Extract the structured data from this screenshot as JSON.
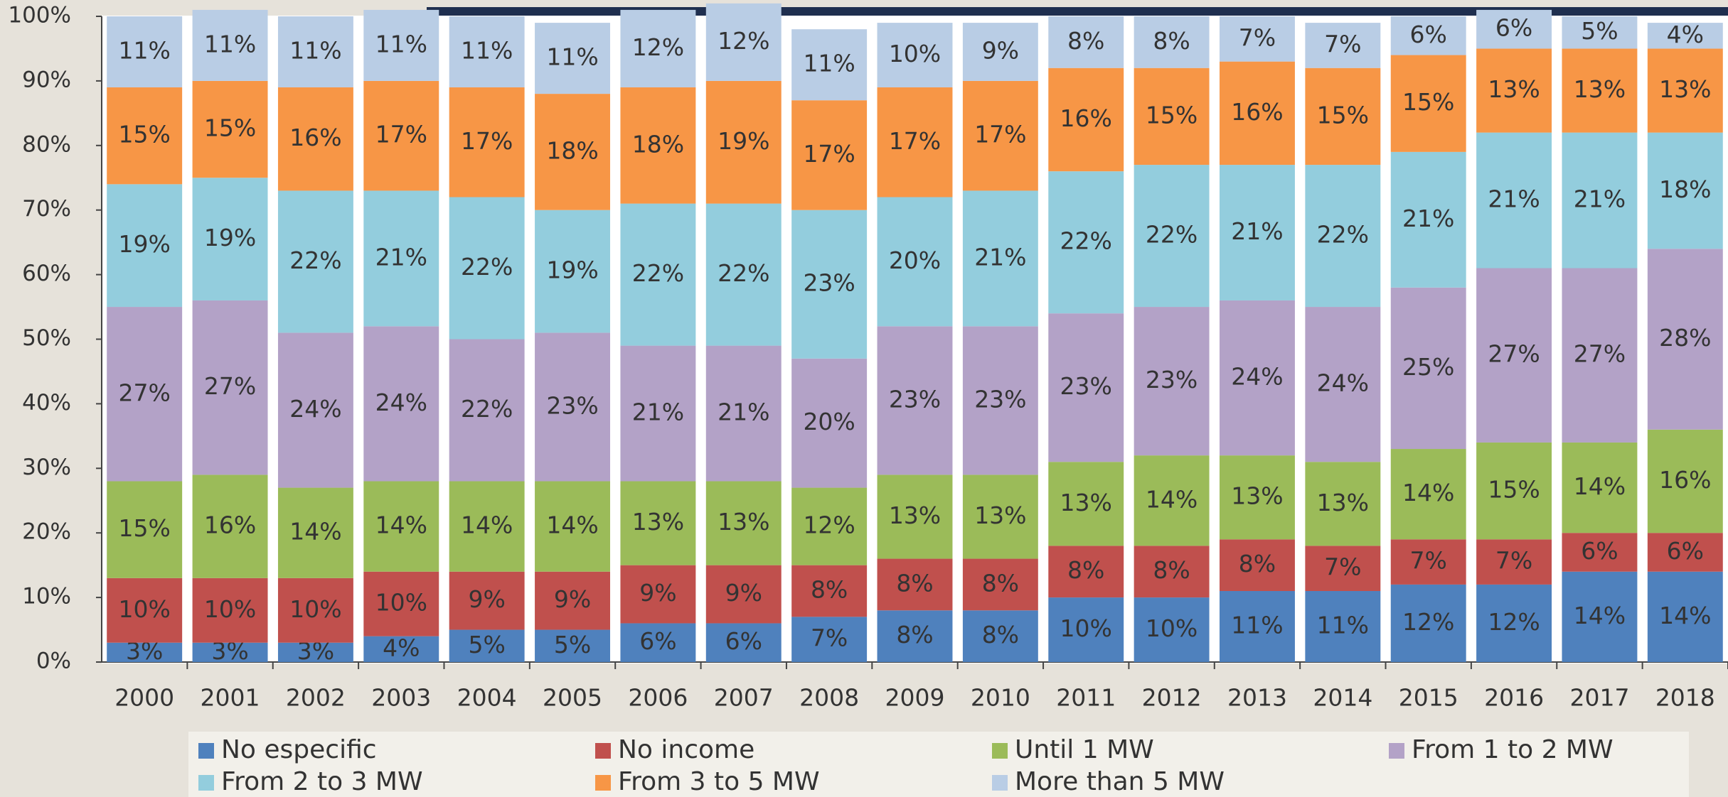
{
  "chart_data": {
    "type": "stacked_bar",
    "categories": [
      "2000",
      "2001",
      "2002",
      "2003",
      "2004",
      "2005",
      "2006",
      "2007",
      "2008",
      "2009",
      "2010",
      "2011",
      "2012",
      "2013",
      "2014",
      "2015",
      "2016",
      "2017",
      "2018"
    ],
    "series": [
      {
        "name": "No especific",
        "color": "#4f81bd",
        "values": [
          3,
          3,
          3,
          4,
          5,
          5,
          6,
          6,
          7,
          8,
          8,
          10,
          10,
          11,
          11,
          12,
          12,
          14,
          14
        ],
        "value_labels": [
          "3%",
          "3%",
          "3%",
          "4%",
          "5%",
          "5%",
          "6%",
          "6%",
          "7%",
          "8%",
          "8%",
          "10%",
          "10%",
          "11%",
          "11%",
          "12%",
          "12%",
          "14%",
          "14%"
        ]
      },
      {
        "name": "No income",
        "color": "#c0504d",
        "values": [
          10,
          10,
          10,
          10,
          9,
          9,
          9,
          9,
          8,
          8,
          8,
          8,
          8,
          8,
          7,
          7,
          7,
          6,
          6
        ],
        "value_labels": [
          "10%",
          "10%",
          "10%",
          "10%",
          "9%",
          "9%",
          "9%",
          "9%",
          "8%",
          "8%",
          "8%",
          "8%",
          "8%",
          "8%",
          "7%",
          "7%",
          "7%",
          "6%",
          "6%"
        ]
      },
      {
        "name": "Until 1 MW",
        "color": "#9bbb59",
        "values": [
          15,
          16,
          14,
          14,
          14,
          14,
          13,
          13,
          12,
          13,
          13,
          13,
          14,
          13,
          13,
          14,
          15,
          14,
          16
        ],
        "value_labels": [
          "15%",
          "16%",
          "14%",
          "14%",
          "14%",
          "14%",
          "13%",
          "13%",
          "12%",
          "13%",
          "13%",
          "13%",
          "14%",
          "13%",
          "13%",
          "14%",
          "15%",
          "14%",
          "16%"
        ]
      },
      {
        "name": "From 1 to 2 MW",
        "color": "#b3a2c7",
        "values": [
          27,
          27,
          24,
          24,
          22,
          23,
          21,
          21,
          20,
          23,
          23,
          23,
          23,
          24,
          24,
          25,
          27,
          27,
          28
        ],
        "value_labels": [
          "27%",
          "27%",
          "24%",
          "24%",
          "22%",
          "23%",
          "21%",
          "21%",
          "20%",
          "23%",
          "23%",
          "23%",
          "23%",
          "24%",
          "24%",
          "25%",
          "27%",
          "27%",
          "28%"
        ]
      },
      {
        "name": "From 2 to 3 MW",
        "color": "#93cddd",
        "values": [
          19,
          19,
          22,
          21,
          22,
          19,
          22,
          22,
          23,
          20,
          21,
          22,
          22,
          21,
          22,
          21,
          21,
          21,
          18
        ],
        "value_labels": [
          "19%",
          "19%",
          "22%",
          "21%",
          "22%",
          "19%",
          "22%",
          "22%",
          "23%",
          "20%",
          "21%",
          "22%",
          "22%",
          "21%",
          "22%",
          "21%",
          "21%",
          "21%",
          "18%"
        ]
      },
      {
        "name": "From 3 to 5 MW",
        "color": "#f79646",
        "values": [
          15,
          15,
          16,
          17,
          17,
          18,
          18,
          19,
          17,
          17,
          17,
          16,
          15,
          16,
          15,
          15,
          13,
          13,
          13
        ],
        "value_labels": [
          "15%",
          "15%",
          "16%",
          "17%",
          "17%",
          "18%",
          "18%",
          "19%",
          "17%",
          "17%",
          "17%",
          "16%",
          "15%",
          "16%",
          "15%",
          "15%",
          "13%",
          "13%",
          "13%"
        ]
      },
      {
        "name": "More than 5 MW",
        "color": "#b9cde5",
        "values": [
          11,
          11,
          11,
          11,
          11,
          11,
          12,
          12,
          11,
          10,
          9,
          8,
          8,
          7,
          7,
          6,
          6,
          5,
          4
        ],
        "value_labels": [
          "11%",
          "11%",
          "11%",
          "11%",
          "11%",
          "11%",
          "12%",
          "12%",
          "11%",
          "10%",
          "9%",
          "8%",
          "8%",
          "7%",
          "7%",
          "6%",
          "6%",
          "5%",
          "4%"
        ]
      }
    ],
    "ylim": [
      0,
      100
    ],
    "yticks": [
      {
        "value": 0,
        "label": "0%"
      },
      {
        "value": 10,
        "label": "10%"
      },
      {
        "value": 20,
        "label": "20%"
      },
      {
        "value": 30,
        "label": "30%"
      },
      {
        "value": 40,
        "label": "40%"
      },
      {
        "value": 50,
        "label": "50%"
      },
      {
        "value": 60,
        "label": "60%"
      },
      {
        "value": 70,
        "label": "70%"
      },
      {
        "value": 80,
        "label": "80%"
      },
      {
        "value": 90,
        "label": "90%"
      },
      {
        "value": 100,
        "label": "100%"
      }
    ],
    "legend": "bottom"
  }
}
